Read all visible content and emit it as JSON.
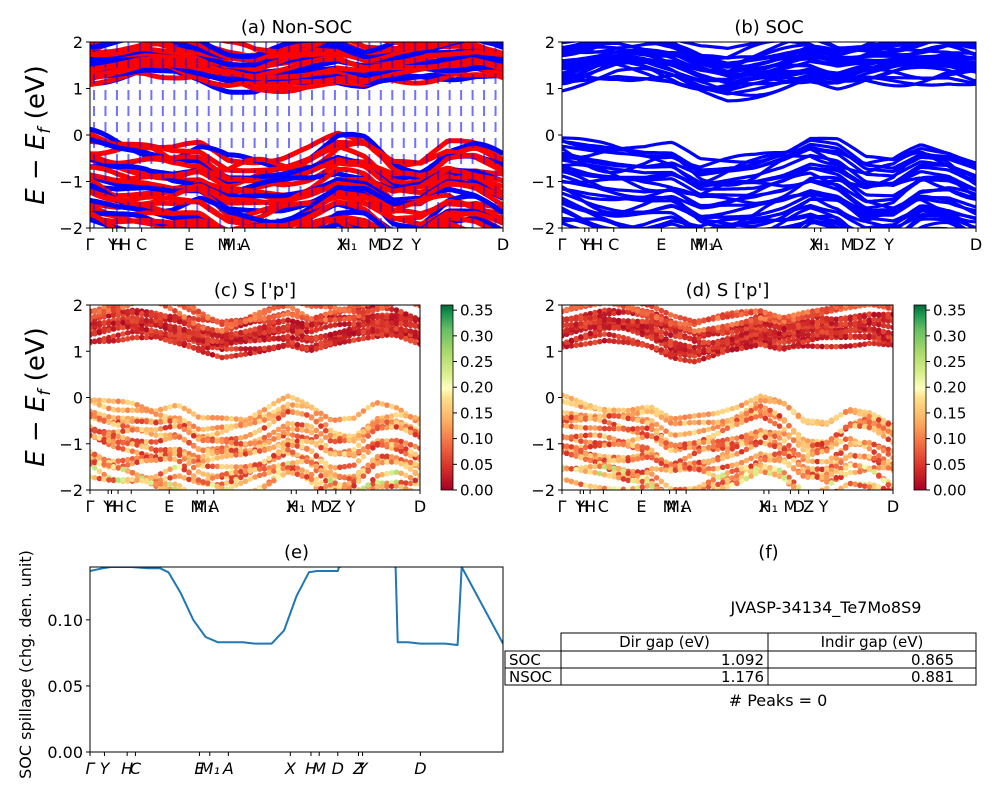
{
  "figure": {
    "material_id": "JVASP-34134_Te7Mo8S9",
    "peaks_text": "# Peaks = 0"
  },
  "shared": {
    "ylabel_energy": "E − E_f (eV)",
    "energy_yticks": [
      "2",
      "1",
      "0",
      "−1",
      "−2"
    ],
    "kpath_labels_full": [
      "Γ",
      "Y",
      "H",
      "H",
      "C",
      "E",
      "M",
      "M",
      "A",
      "X",
      "H",
      "M",
      "D",
      "Z",
      "Y",
      "D"
    ]
  },
  "chart_data": [
    {
      "panel": "a",
      "type": "line",
      "title": "(a) Non-SOC",
      "ylabel": "E − E_f (eV)",
      "ylim": [
        -2,
        2
      ],
      "yticks": [
        -2,
        -1,
        0,
        1,
        2
      ],
      "xtick_labels": [
        "Γ",
        "Y",
        "H",
        "H",
        "C",
        "E",
        "M",
        "M₁",
        "A",
        "X",
        "H₁",
        "M",
        "D",
        "Z",
        "Y",
        "D"
      ],
      "series": [
        {
          "color": "#ff0000"
        },
        {
          "color": "#0000ff"
        }
      ],
      "bands": {
        "conduction_lower_edge": [
          1.15,
          1.25,
          1.35,
          1.3,
          1.2,
          1.0,
          0.9,
          1.0,
          1.1,
          1.2,
          1.05,
          1.15,
          1.2,
          1.25,
          1.3,
          1.2
        ],
        "valence_upper_edge": [
          0.0,
          -0.15,
          -0.2,
          -0.3,
          -0.25,
          -0.55,
          -0.5,
          -0.45,
          -0.3,
          -0.05,
          -0.15,
          -0.55,
          -0.55,
          -0.2,
          -0.25,
          -0.5
        ]
      }
    },
    {
      "panel": "b",
      "type": "line",
      "title": "(b) SOC",
      "ylim": [
        -2,
        2
      ],
      "yticks": [
        -2,
        -1,
        0,
        1,
        2
      ],
      "xtick_labels": [
        "Γ",
        "Y",
        "H",
        "H",
        "C",
        "E",
        "M",
        "M₁",
        "A",
        "X",
        "H₁",
        "M",
        "D",
        "Z",
        "Y",
        "D"
      ],
      "series": [
        {
          "color": "#0000ff"
        }
      ],
      "bands": {
        "conduction_lower_edge": [
          1.1,
          1.2,
          1.3,
          1.25,
          1.15,
          0.95,
          0.85,
          0.95,
          1.05,
          1.15,
          1.0,
          1.1,
          1.15,
          1.2,
          1.25,
          1.15
        ],
        "valence_upper_edge": [
          0.0,
          -0.15,
          -0.25,
          -0.3,
          -0.25,
          -0.55,
          -0.5,
          -0.45,
          -0.3,
          -0.05,
          -0.15,
          -0.55,
          -0.55,
          -0.2,
          -0.25,
          -0.5
        ]
      }
    },
    {
      "panel": "c",
      "type": "scatter",
      "title": "(c)  S ['p']",
      "ylabel": "E − E_f (eV)",
      "ylim": [
        -2,
        2
      ],
      "yticks": [
        -2,
        -1,
        0,
        1,
        2
      ],
      "xtick_labels": [
        "Γ",
        "Y",
        "H",
        "H",
        "C",
        "E",
        "M",
        "M₁",
        "A",
        "X",
        "H₁",
        "M",
        "D",
        "Z",
        "Y",
        "D"
      ],
      "colorbar": {
        "colormap": "RdYlGn",
        "range": [
          0.0,
          0.36
        ],
        "ticks": [
          "0.00",
          "0.05",
          "0.10",
          "0.15",
          "0.20",
          "0.25",
          "0.30",
          "0.35"
        ]
      }
    },
    {
      "panel": "d",
      "type": "scatter",
      "title": "(d) S ['p']",
      "ylim": [
        -2,
        2
      ],
      "yticks": [
        -2,
        -1,
        0,
        1,
        2
      ],
      "xtick_labels": [
        "Γ",
        "Y",
        "H",
        "H",
        "C",
        "E",
        "M",
        "M₁",
        "A",
        "X",
        "H₁",
        "M",
        "D",
        "Z",
        "Y",
        "D"
      ],
      "colorbar": {
        "colormap": "RdYlGn",
        "range": [
          0.0,
          0.36
        ],
        "ticks": [
          "0.00",
          "0.05",
          "0.10",
          "0.15",
          "0.20",
          "0.25",
          "0.30",
          "0.35"
        ]
      }
    },
    {
      "panel": "e",
      "type": "line",
      "title": "(e)",
      "ylabel": "SOC spillage (chg. den. unit)",
      "ylim": [
        0.0,
        0.14
      ],
      "yticks": [
        "0.00",
        "0.05",
        "0.10"
      ],
      "xtick_labels": [
        "Γ",
        "Y",
        "H",
        "C",
        "E",
        "M₁",
        "A",
        "X",
        "H",
        "M",
        "D",
        "Z",
        "Y",
        "D"
      ],
      "series": [
        {
          "color": "#1f77b4",
          "x": [
            0,
            3,
            5,
            7,
            10,
            14,
            17,
            19,
            22,
            25,
            28,
            31,
            33,
            37,
            40,
            44,
            47,
            50,
            53,
            55,
            58,
            60,
            60.3,
            62,
            66,
            71,
            73,
            74,
            74.5,
            77,
            80,
            83,
            86,
            89,
            90,
            100
          ],
          "y": [
            0.137,
            0.139,
            0.14,
            0.14,
            0.14,
            0.139,
            0.139,
            0.136,
            0.12,
            0.1,
            0.087,
            0.083,
            0.083,
            0.083,
            0.082,
            0.082,
            0.092,
            0.118,
            0.136,
            0.137,
            0.137,
            0.137,
            0.14,
            0.141,
            0.141,
            0.141,
            0.141,
            0.14,
            0.083,
            0.083,
            0.082,
            0.082,
            0.082,
            0.081,
            0.14,
            0.082
          ]
        }
      ]
    },
    {
      "panel": "f",
      "type": "table",
      "title": "(f)",
      "columns": [
        "",
        "Dir gap (eV)",
        "Indir gap (eV)"
      ],
      "rows": [
        [
          "SOC",
          "1.092",
          "0.865"
        ],
        [
          "NSOC",
          "1.176",
          "0.881"
        ]
      ]
    }
  ]
}
